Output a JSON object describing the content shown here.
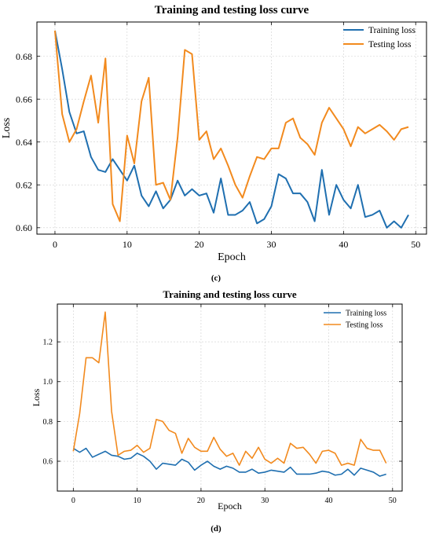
{
  "colors": {
    "training": "#1f6fb0",
    "testing": "#f28a1e"
  },
  "chart_data": [
    {
      "type": "line",
      "panel_label": "(c)",
      "title": "Training and testing loss curve",
      "xlabel": "Epoch",
      "ylabel": "Loss",
      "xlim": [
        -2.5,
        51.5
      ],
      "ylim": [
        0.597,
        0.696
      ],
      "xticks": [
        0,
        10,
        20,
        30,
        40,
        50
      ],
      "yticks": [
        0.6,
        0.62,
        0.64,
        0.66,
        0.68
      ],
      "ytick_labels": [
        "0.60",
        "0.62",
        "0.64",
        "0.66",
        "0.68"
      ],
      "grid": true,
      "legend": "top-right",
      "x": [
        0,
        1,
        2,
        3,
        4,
        5,
        6,
        7,
        8,
        9,
        10,
        11,
        12,
        13,
        14,
        15,
        16,
        17,
        18,
        19,
        20,
        21,
        22,
        23,
        24,
        25,
        26,
        27,
        28,
        29,
        30,
        31,
        32,
        33,
        34,
        35,
        36,
        37,
        38,
        39,
        40,
        41,
        42,
        43,
        44,
        45,
        46,
        47,
        48,
        49
      ],
      "series": [
        {
          "name": "Training loss",
          "color_key": "training",
          "values": [
            0.692,
            0.674,
            0.654,
            0.644,
            0.645,
            0.633,
            0.627,
            0.626,
            0.632,
            0.627,
            0.622,
            0.629,
            0.615,
            0.61,
            0.617,
            0.609,
            0.613,
            0.622,
            0.615,
            0.618,
            0.615,
            0.616,
            0.607,
            0.623,
            0.606,
            0.606,
            0.608,
            0.612,
            0.602,
            0.604,
            0.61,
            0.625,
            0.623,
            0.616,
            0.616,
            0.612,
            0.603,
            0.627,
            0.606,
            0.62,
            0.613,
            0.609,
            0.62,
            0.605,
            0.606,
            0.608,
            0.6,
            0.603,
            0.6,
            0.606
          ]
        },
        {
          "name": "Testing loss",
          "color_key": "testing",
          "values": [
            0.692,
            0.653,
            0.64,
            0.646,
            0.659,
            0.671,
            0.649,
            0.679,
            0.611,
            0.603,
            0.643,
            0.63,
            0.659,
            0.67,
            0.62,
            0.621,
            0.613,
            0.642,
            0.683,
            0.681,
            0.641,
            0.645,
            0.632,
            0.637,
            0.629,
            0.62,
            0.614,
            0.624,
            0.633,
            0.632,
            0.637,
            0.637,
            0.649,
            0.651,
            0.642,
            0.639,
            0.634,
            0.649,
            0.656,
            0.651,
            0.646,
            0.638,
            0.647,
            0.644,
            0.646,
            0.648,
            0.645,
            0.641,
            0.646,
            0.647
          ]
        }
      ]
    },
    {
      "type": "line",
      "panel_label": "(d)",
      "title": "Training and testing loss curve",
      "xlabel": "Epoch",
      "ylabel": "Loss",
      "xlim": [
        -2.5,
        51.5
      ],
      "ylim": [
        0.45,
        1.39
      ],
      "xticks": [
        0,
        10,
        20,
        30,
        40,
        50
      ],
      "yticks": [
        0.6,
        0.8,
        1.0,
        1.2
      ],
      "ytick_labels": [
        "0.6",
        "0.8",
        "1.0",
        "1.2"
      ],
      "grid": true,
      "legend": "top-right",
      "x": [
        0,
        1,
        2,
        3,
        4,
        5,
        6,
        7,
        8,
        9,
        10,
        11,
        12,
        13,
        14,
        15,
        16,
        17,
        18,
        19,
        20,
        21,
        22,
        23,
        24,
        25,
        26,
        27,
        28,
        29,
        30,
        31,
        32,
        33,
        34,
        35,
        36,
        37,
        38,
        39,
        40,
        41,
        42,
        43,
        44,
        45,
        46,
        47,
        48,
        49
      ],
      "series": [
        {
          "name": "Training loss",
          "color_key": "training",
          "values": [
            0.665,
            0.645,
            0.665,
            0.62,
            0.635,
            0.65,
            0.63,
            0.625,
            0.61,
            0.615,
            0.64,
            0.625,
            0.6,
            0.56,
            0.59,
            0.585,
            0.58,
            0.61,
            0.595,
            0.555,
            0.58,
            0.6,
            0.575,
            0.56,
            0.575,
            0.565,
            0.545,
            0.545,
            0.56,
            0.54,
            0.545,
            0.555,
            0.55,
            0.545,
            0.57,
            0.535,
            0.535,
            0.535,
            0.54,
            0.55,
            0.545,
            0.53,
            0.535,
            0.56,
            0.53,
            0.565,
            0.555,
            0.545,
            0.525,
            0.535
          ]
        },
        {
          "name": "Testing loss",
          "color_key": "testing",
          "values": [
            0.65,
            0.84,
            1.12,
            1.12,
            1.095,
            1.35,
            0.85,
            0.63,
            0.65,
            0.655,
            0.68,
            0.645,
            0.665,
            0.81,
            0.8,
            0.755,
            0.74,
            0.64,
            0.715,
            0.67,
            0.65,
            0.65,
            0.72,
            0.66,
            0.625,
            0.64,
            0.58,
            0.65,
            0.615,
            0.67,
            0.61,
            0.59,
            0.615,
            0.59,
            0.69,
            0.665,
            0.67,
            0.635,
            0.59,
            0.65,
            0.655,
            0.64,
            0.58,
            0.59,
            0.58,
            0.71,
            0.665,
            0.655,
            0.655,
            0.59
          ]
        }
      ]
    }
  ]
}
